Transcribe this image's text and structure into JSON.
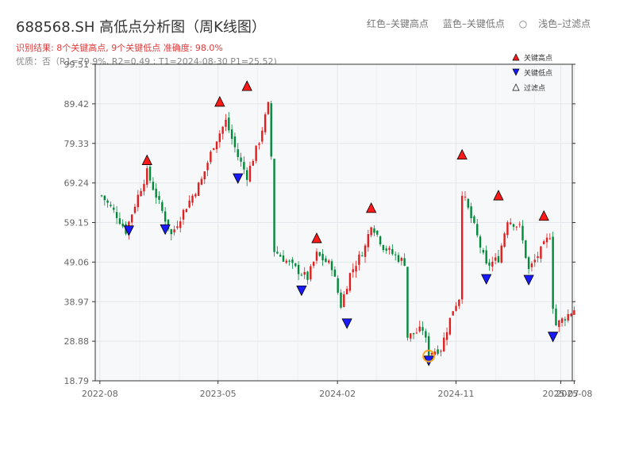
{
  "header": {
    "title": "688568.SH 高低点分析图（周K线图）",
    "result": "识别结果: 8个关键高点, 9个关键低点  准确度: 98.0%",
    "subinfo": "优质：否（R1=79.9%, R2=0.49 ; T1=2024-08-30 P1=25.52)"
  },
  "top_legend": [
    "红色–关键高点",
    "蓝色–关键低点",
    "浅色–过滤点"
  ],
  "chart_data": {
    "type": "candlestick",
    "title": "688568.SH 高低点分析图（周K线图）",
    "ylim": [
      18.79,
      99.51
    ],
    "yticks": [
      18.79,
      28.88,
      38.97,
      49.06,
      59.15,
      69.24,
      79.33,
      89.42,
      99.51
    ],
    "xticks": [
      "2022-08",
      "2023-05",
      "2024-02",
      "2024-11",
      "2025-07",
      "2025-08"
    ],
    "grid": true,
    "legend_position": "top-right",
    "legend": [
      {
        "label": "关键高点",
        "marker": "triangle-up",
        "color": "#ff1a1a"
      },
      {
        "label": "关键低点",
        "marker": "triangle-down",
        "color": "#1a1aff"
      },
      {
        "label": "过滤点",
        "marker": "triangle-up-hollow",
        "color": "#ffffff"
      }
    ],
    "colors": {
      "up": "#e02020",
      "down": "#008a3a",
      "high": "#ff1a1a",
      "low": "#1a1aff",
      "highlight": "#f5a623"
    },
    "period_start": "2022-08-05",
    "anchors": [
      [
        "2022-08-05",
        66
      ],
      [
        "2022-09-09",
        61
      ],
      [
        "2022-09-30",
        57
      ],
      [
        "2022-10-28",
        66
      ],
      [
        "2022-11-18",
        72
      ],
      [
        "2022-12-16",
        64
      ],
      [
        "2023-01-13",
        56
      ],
      [
        "2023-02-10",
        62
      ],
      [
        "2023-03-24",
        70
      ],
      [
        "2023-04-21",
        79
      ],
      [
        "2023-05-19",
        85
      ],
      [
        "2023-06-16",
        76
      ],
      [
        "2023-07-07",
        71
      ],
      [
        "2023-08-04",
        80
      ],
      [
        "2023-08-25",
        89
      ],
      [
        "2023-09-01",
        76
      ],
      [
        "2023-09-08",
        52
      ],
      [
        "2023-10-20",
        48
      ],
      [
        "2023-11-24",
        45
      ],
      [
        "2023-12-15",
        51
      ],
      [
        "2024-01-19",
        48
      ],
      [
        "2024-02-09",
        38
      ],
      [
        "2024-03-01",
        46
      ],
      [
        "2024-04-05",
        53
      ],
      [
        "2024-04-19",
        59
      ],
      [
        "2024-05-17",
        53
      ],
      [
        "2024-06-21",
        50
      ],
      [
        "2024-07-05",
        49
      ],
      [
        "2024-07-12",
        30
      ],
      [
        "2024-08-16",
        32
      ],
      [
        "2024-08-30",
        26
      ],
      [
        "2024-09-27",
        27
      ],
      [
        "2024-10-25",
        37
      ],
      [
        "2024-11-08",
        40
      ],
      [
        "2024-11-15",
        67
      ],
      [
        "2024-12-13",
        58
      ],
      [
        "2025-01-10",
        48
      ],
      [
        "2025-02-07",
        50
      ],
      [
        "2025-02-28",
        60
      ],
      [
        "2025-03-28",
        58
      ],
      [
        "2025-04-18",
        47
      ],
      [
        "2025-05-16",
        52
      ],
      [
        "2025-06-06",
        56
      ],
      [
        "2025-06-13",
        38
      ],
      [
        "2025-06-20",
        33
      ],
      [
        "2025-07-11",
        35
      ],
      [
        "2025-08-01",
        37
      ]
    ],
    "key_highs": [
      {
        "date": "2022-11-18",
        "price": 73.5
      },
      {
        "date": "2023-05-05",
        "price": 88.4
      },
      {
        "date": "2023-07-07",
        "price": 92.4
      },
      {
        "date": "2023-12-15",
        "price": 53.6
      },
      {
        "date": "2024-04-19",
        "price": 61.3
      },
      {
        "date": "2024-11-15",
        "price": 74.9
      },
      {
        "date": "2025-02-07",
        "price": 64.5
      },
      {
        "date": "2025-05-23",
        "price": 59.3
      }
    ],
    "key_lows": [
      {
        "date": "2022-10-07",
        "price": 58.7
      },
      {
        "date": "2022-12-30",
        "price": 59.0
      },
      {
        "date": "2023-06-16",
        "price": 72.0
      },
      {
        "date": "2023-11-10",
        "price": 43.4
      },
      {
        "date": "2024-02-23",
        "price": 35.0
      },
      {
        "date": "2024-08-30",
        "price": 25.52
      },
      {
        "date": "2025-01-10",
        "price": 46.3
      },
      {
        "date": "2025-04-18",
        "price": 46.1
      },
      {
        "date": "2025-06-13",
        "price": 31.6
      }
    ],
    "highlight": {
      "date": "2024-08-30",
      "price": 25.52
    }
  }
}
